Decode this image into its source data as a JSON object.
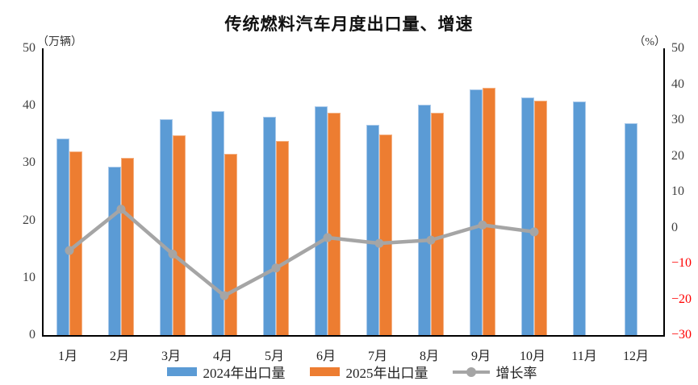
{
  "chart_data": {
    "type": "bar",
    "title": "传统燃料汽车月度出口量、增速",
    "left_axis": {
      "unit": "（万辆）",
      "min": 0,
      "max": 50,
      "ticks": [
        0,
        10,
        20,
        30,
        40,
        50
      ]
    },
    "right_axis": {
      "unit": "（%）",
      "min": -30,
      "max": 50,
      "ticks": [
        -30,
        -20,
        -10,
        0,
        10,
        20,
        30,
        40,
        50
      ]
    },
    "negative_tick_color": "#FF0000",
    "grid": false,
    "legend_position": "bottom",
    "categories": [
      "1月",
      "2月",
      "3月",
      "4月",
      "5月",
      "6月",
      "7月",
      "8月",
      "9月",
      "10月",
      "11月",
      "12月"
    ],
    "series": [
      {
        "name": "2024年出口量",
        "type": "bar",
        "axis": "left",
        "color": "#5B9BD5",
        "edge_color": "#A9C9EA",
        "values": [
          34.2,
          29.4,
          37.6,
          39.0,
          38.1,
          39.9,
          36.6,
          40.2,
          42.8,
          41.4,
          40.8,
          37.0
        ]
      },
      {
        "name": "2025年出口量",
        "type": "bar",
        "axis": "left",
        "color": "#ED7D31",
        "edge_color": "#F4B183",
        "values": [
          32.0,
          30.9,
          34.8,
          31.6,
          33.8,
          38.8,
          35.0,
          38.8,
          43.1,
          40.9,
          null,
          null
        ]
      },
      {
        "name": "增长率",
        "type": "line",
        "axis": "right",
        "color": "#A5A5A5",
        "values": [
          -6.4,
          5.1,
          -7.4,
          -19.0,
          -11.3,
          -2.8,
          -4.4,
          -3.5,
          0.7,
          -1.2,
          null,
          null
        ]
      }
    ]
  }
}
